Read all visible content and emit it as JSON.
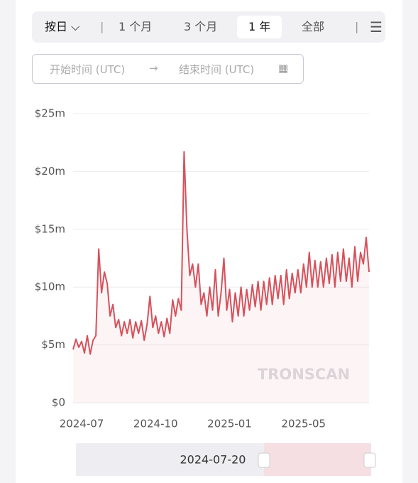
{
  "toolbar": {
    "interval": "按日",
    "ranges": [
      "1 个月",
      "3 个月",
      "1 年",
      "全部"
    ],
    "start_placeholder": "开始时间 (UTC)",
    "end_placeholder": "结束时间 (UTC)"
  },
  "watermark": "TRONSCAN",
  "slider_label": "2024-07-20",
  "chart_data": {
    "type": "line",
    "categories": [
      null,
      null,
      null,
      "2024-07",
      null,
      null,
      null,
      null,
      null,
      null,
      null,
      null,
      null,
      null,
      null,
      null,
      null,
      null,
      null,
      null,
      null,
      null,
      null,
      null,
      null,
      null,
      null,
      null,
      null,
      "2024-10",
      null,
      null,
      null,
      null,
      null,
      null,
      null,
      null,
      null,
      null,
      null,
      null,
      null,
      null,
      null,
      null,
      null,
      null,
      null,
      null,
      null,
      null,
      null,
      null,
      null,
      "2025-01",
      null,
      null,
      null,
      null,
      null,
      null,
      null,
      null,
      null,
      null,
      null,
      null,
      null,
      null,
      null,
      null,
      null,
      null,
      null,
      null,
      null,
      null,
      null,
      null,
      null,
      "2025-05",
      null,
      null,
      null,
      null,
      null,
      null,
      null,
      null,
      null,
      null,
      null,
      null,
      null,
      null,
      null,
      null,
      null,
      null,
      null,
      null,
      null,
      null,
      null
    ],
    "series": [
      {
        "color": "#d6515c",
        "values": [
          4.6,
          5.5,
          4.8,
          5.3,
          4.3,
          5.8,
          4.2,
          5.4,
          5.8,
          13.3,
          9.5,
          11.3,
          10.3,
          7.5,
          8.5,
          6.5,
          7.2,
          5.8,
          7.0,
          6.0,
          7.2,
          5.6,
          7.0,
          6.0,
          7.1,
          5.4,
          6.8,
          9.2,
          6.5,
          7.5,
          6.0,
          7.0,
          5.7,
          7.3,
          6.0,
          8.9,
          7.5,
          9.0,
          8.0,
          21.7,
          15,
          11,
          12,
          10,
          12,
          8.5,
          9.5,
          7.5,
          10,
          8,
          11.5,
          7.5,
          9.5,
          12.5,
          8,
          9.8,
          7,
          9.5,
          7.5,
          10,
          7.5,
          9.8,
          8,
          10.2,
          8.3,
          10.5,
          8,
          10.5,
          8.5,
          10.8,
          8.5,
          11,
          9,
          11,
          8.5,
          11.5,
          9,
          11.2,
          9.5,
          11.5,
          9.5,
          12,
          10,
          13,
          10,
          12.3,
          10,
          12.2,
          10,
          12.5,
          10.3,
          12.8,
          10,
          13,
          10.5,
          13.3,
          10.5,
          12.5,
          10,
          13.5,
          10.5,
          13,
          12,
          14.3,
          11.3
        ]
      }
    ],
    "ylim": [
      0,
      25
    ],
    "yticks": [
      {
        "value": 0,
        "label": "$0"
      },
      {
        "value": 5,
        "label": "$5m"
      },
      {
        "value": 10,
        "label": "$10m"
      },
      {
        "value": 15,
        "label": "$15m"
      },
      {
        "value": 20,
        "label": "$20m"
      },
      {
        "value": 25,
        "label": "$25m"
      }
    ],
    "grid": true
  }
}
